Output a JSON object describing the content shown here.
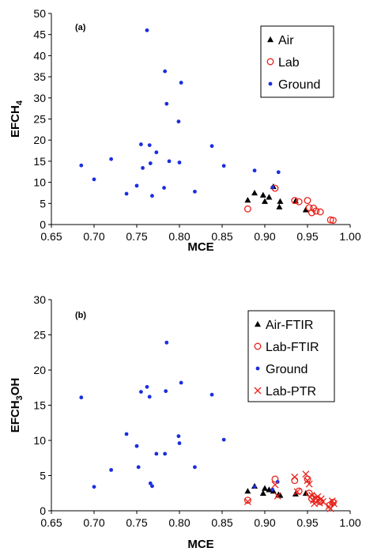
{
  "chart_data": [
    {
      "type": "scatter",
      "panel_label": "(a)",
      "xlabel": "MCE",
      "ylabel": "EFCH",
      "ylabel_sub": "4",
      "xlim": [
        0.65,
        1.0
      ],
      "ylim": [
        0,
        50
      ],
      "xticks": [
        "0.65",
        "0.70",
        "0.75",
        "0.80",
        "0.85",
        "0.90",
        "0.95",
        "1.00"
      ],
      "yticks": [
        "0",
        "5",
        "10",
        "15",
        "20",
        "25",
        "30",
        "35",
        "40",
        "45",
        "50"
      ],
      "grid": false,
      "legend_position": "top-right",
      "series": [
        {
          "name": "Air",
          "marker": "triangle",
          "color": "#000000",
          "points": [
            [
              0.88,
              5.8
            ],
            [
              0.888,
              7.5
            ],
            [
              0.898,
              7.0
            ],
            [
              0.9,
              5.5
            ],
            [
              0.905,
              6.5
            ],
            [
              0.91,
              9.0
            ],
            [
              0.917,
              4.2
            ],
            [
              0.918,
              5.5
            ],
            [
              0.936,
              5.6
            ],
            [
              0.948,
              3.5
            ]
          ]
        },
        {
          "name": "Lab",
          "marker": "open-circle",
          "color": "#e8221b",
          "points": [
            [
              0.88,
              3.7
            ],
            [
              0.912,
              8.6
            ],
            [
              0.935,
              5.7
            ],
            [
              0.94,
              5.4
            ],
            [
              0.95,
              5.7
            ],
            [
              0.952,
              4.0
            ],
            [
              0.955,
              2.8
            ],
            [
              0.957,
              3.9
            ],
            [
              0.96,
              3.2
            ],
            [
              0.965,
              3.0
            ],
            [
              0.977,
              1.1
            ],
            [
              0.98,
              1.0
            ]
          ]
        },
        {
          "name": "Ground",
          "marker": "filled-dot",
          "color": "#1a2ee0",
          "points": [
            [
              0.685,
              14.0
            ],
            [
              0.7,
              10.7
            ],
            [
              0.72,
              15.5
            ],
            [
              0.738,
              7.3
            ],
            [
              0.75,
              9.2
            ],
            [
              0.755,
              19.0
            ],
            [
              0.757,
              13.4
            ],
            [
              0.762,
              46.0
            ],
            [
              0.765,
              18.8
            ],
            [
              0.766,
              14.5
            ],
            [
              0.768,
              6.8
            ],
            [
              0.773,
              17.1
            ],
            [
              0.782,
              8.7
            ],
            [
              0.783,
              36.3
            ],
            [
              0.785,
              28.6
            ],
            [
              0.788,
              15.0
            ],
            [
              0.799,
              24.4
            ],
            [
              0.8,
              14.7
            ],
            [
              0.802,
              33.6
            ],
            [
              0.818,
              7.8
            ],
            [
              0.838,
              18.6
            ],
            [
              0.852,
              13.9
            ],
            [
              0.888,
              12.8
            ],
            [
              0.909,
              8.8
            ],
            [
              0.916,
              12.4
            ]
          ]
        }
      ]
    },
    {
      "type": "scatter",
      "panel_label": "(b)",
      "xlabel": "MCE",
      "ylabel_pre": "EFCH",
      "ylabel_sub": "3",
      "ylabel_post": "OH",
      "xlim": [
        0.65,
        1.0
      ],
      "ylim": [
        0,
        30
      ],
      "xticks": [
        "0.65",
        "0.70",
        "0.75",
        "0.80",
        "0.85",
        "0.90",
        "0.95",
        "1.00"
      ],
      "yticks": [
        "0",
        "5",
        "10",
        "15",
        "20",
        "25",
        "30"
      ],
      "grid": false,
      "legend_position": "top-right",
      "series": [
        {
          "name": "Air-FTIR",
          "marker": "triangle",
          "color": "#000000",
          "points": [
            [
              0.88,
              2.8
            ],
            [
              0.888,
              3.5
            ],
            [
              0.898,
              2.5
            ],
            [
              0.9,
              3.2
            ],
            [
              0.905,
              3.0
            ],
            [
              0.91,
              2.8
            ],
            [
              0.916,
              2.3
            ],
            [
              0.918,
              2.2
            ],
            [
              0.936,
              2.4
            ],
            [
              0.948,
              2.5
            ]
          ]
        },
        {
          "name": "Lab-FTIR",
          "marker": "open-circle",
          "color": "#e8221b",
          "points": [
            [
              0.88,
              1.5
            ],
            [
              0.912,
              4.5
            ],
            [
              0.935,
              4.3
            ],
            [
              0.94,
              2.8
            ],
            [
              0.95,
              4.5
            ],
            [
              0.952,
              2.5
            ],
            [
              0.955,
              1.7
            ],
            [
              0.957,
              2.0
            ],
            [
              0.96,
              1.6
            ],
            [
              0.965,
              1.3
            ],
            [
              0.976,
              0.8
            ],
            [
              0.98,
              1.2
            ]
          ]
        },
        {
          "name": "Ground",
          "marker": "filled-dot",
          "color": "#1a2ee0",
          "points": [
            [
              0.685,
              16.1
            ],
            [
              0.7,
              3.4
            ],
            [
              0.72,
              5.8
            ],
            [
              0.738,
              10.9
            ],
            [
              0.75,
              9.2
            ],
            [
              0.752,
              6.2
            ],
            [
              0.755,
              16.9
            ],
            [
              0.762,
              17.6
            ],
            [
              0.765,
              16.2
            ],
            [
              0.766,
              3.9
            ],
            [
              0.768,
              3.5
            ],
            [
              0.773,
              8.1
            ],
            [
              0.783,
              8.1
            ],
            [
              0.784,
              17.0
            ],
            [
              0.785,
              23.9
            ],
            [
              0.799,
              10.6
            ],
            [
              0.8,
              9.6
            ],
            [
              0.802,
              18.2
            ],
            [
              0.818,
              6.2
            ],
            [
              0.838,
              16.5
            ],
            [
              0.852,
              10.1
            ],
            [
              0.888,
              3.4
            ],
            [
              0.909,
              3.0
            ],
            [
              0.915,
              4.1
            ]
          ]
        },
        {
          "name": "Lab-PTR",
          "marker": "x",
          "color": "#e8221b",
          "points": [
            [
              0.88,
              1.3
            ],
            [
              0.912,
              3.7
            ],
            [
              0.915,
              2.1
            ],
            [
              0.935,
              4.8
            ],
            [
              0.938,
              2.7
            ],
            [
              0.948,
              5.2
            ],
            [
              0.95,
              4.3
            ],
            [
              0.952,
              3.8
            ],
            [
              0.955,
              2.2
            ],
            [
              0.957,
              1.5
            ],
            [
              0.958,
              1.0
            ],
            [
              0.96,
              1.8
            ],
            [
              0.962,
              2.0
            ],
            [
              0.964,
              1.1
            ],
            [
              0.966,
              1.7
            ],
            [
              0.968,
              1.3
            ],
            [
              0.975,
              0.6
            ],
            [
              0.977,
              0.3
            ],
            [
              0.979,
              1.4
            ],
            [
              0.981,
              1.0
            ]
          ]
        }
      ]
    }
  ]
}
